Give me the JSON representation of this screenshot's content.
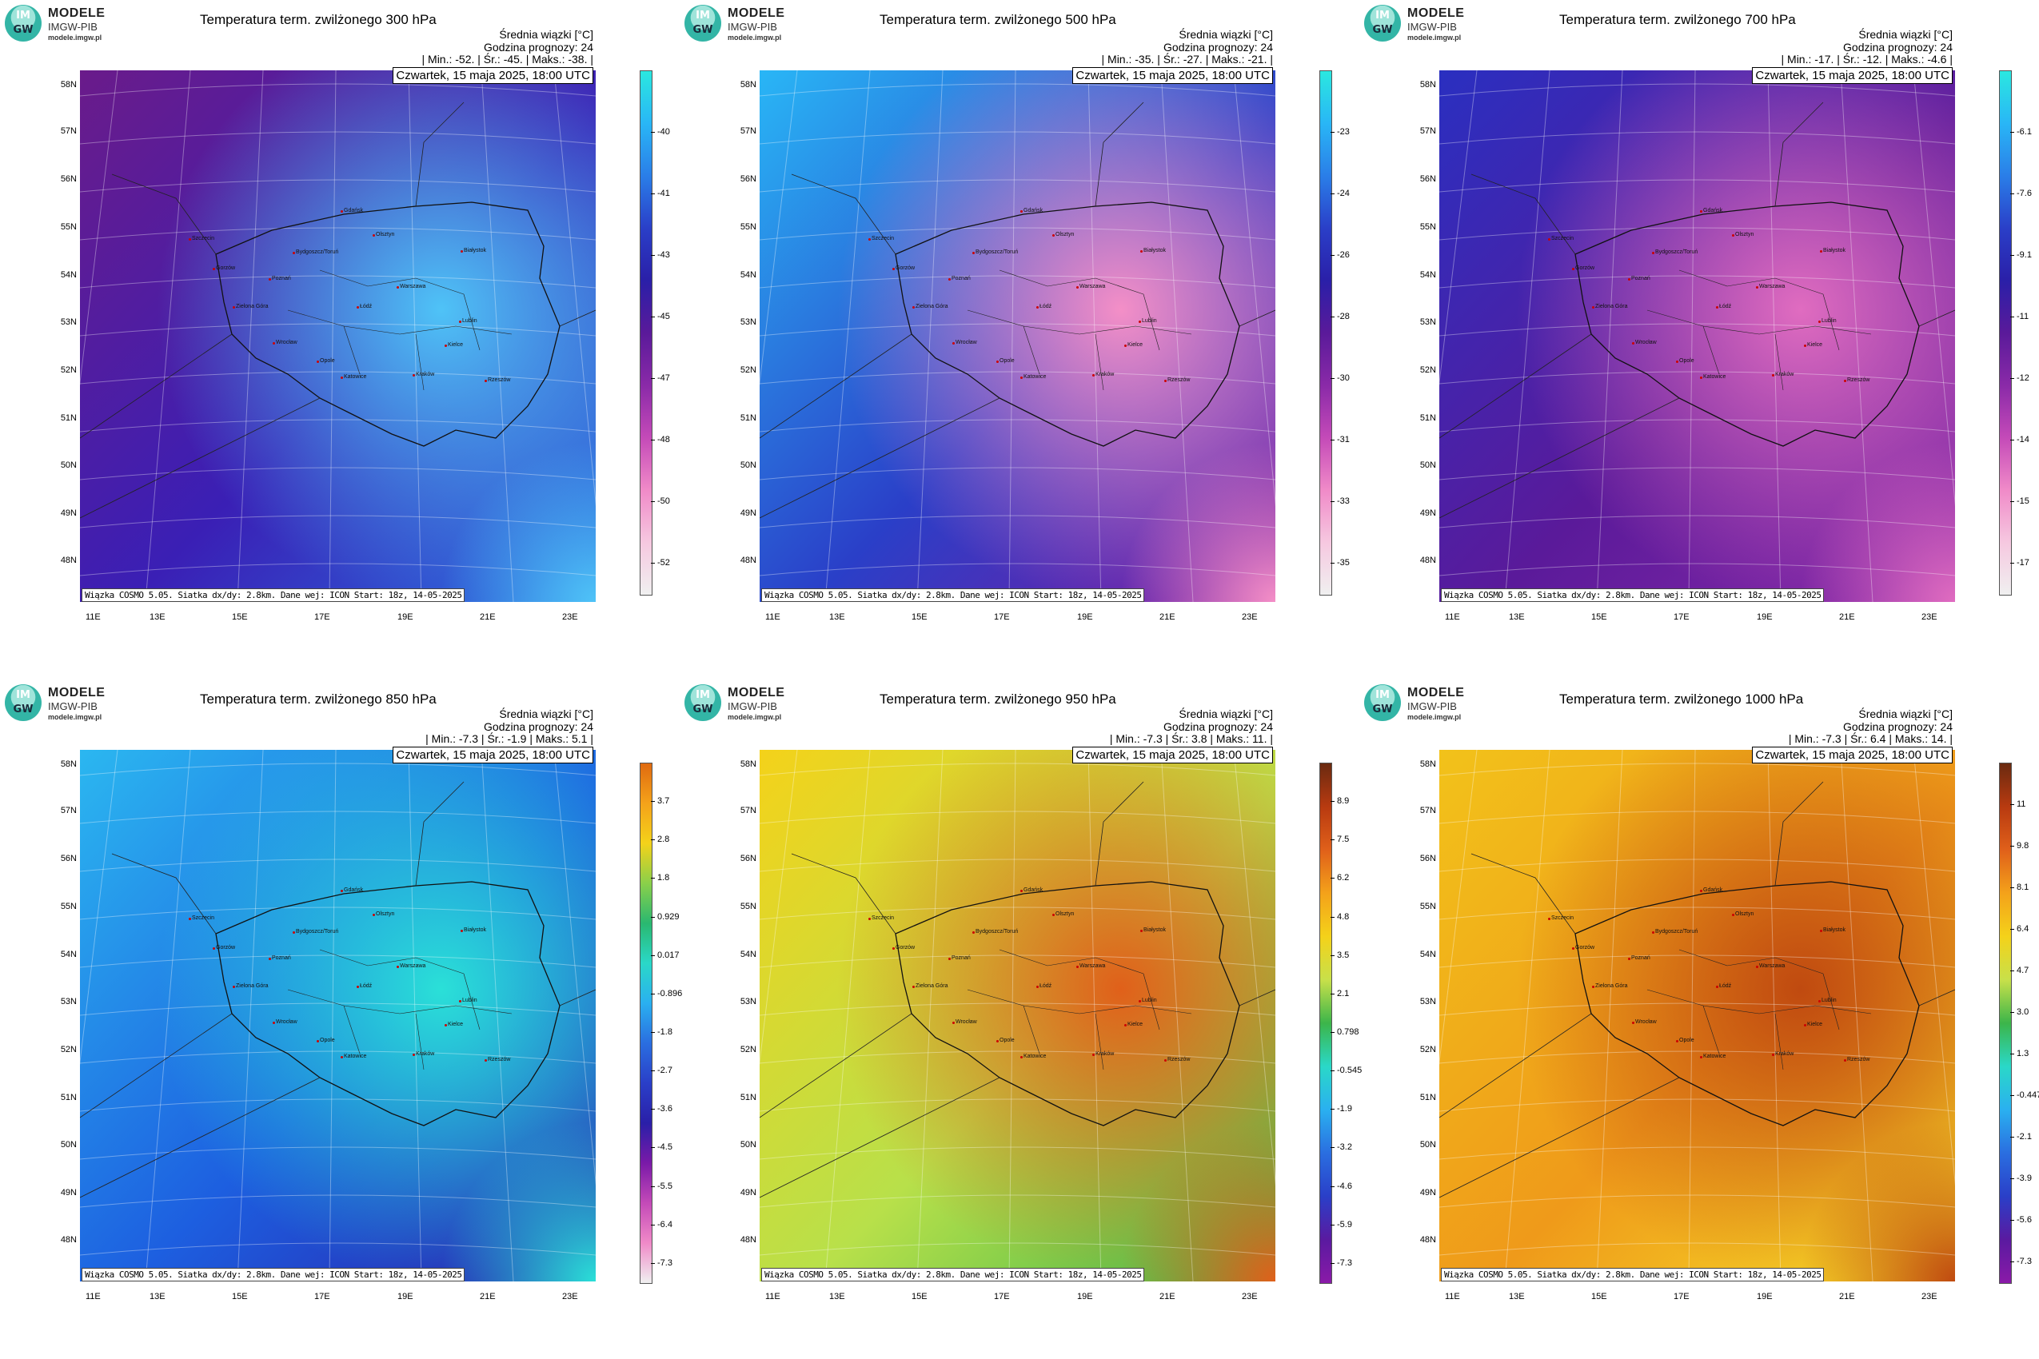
{
  "logo": {
    "line1": "MODELE",
    "line2": "IMGW-PIB",
    "line3": "modele.imgw.pl",
    "badge_top": "IM",
    "badge_bottom": "GW"
  },
  "common": {
    "mean_label": "Średnia wiązki [°C]",
    "forecast_label": "Godzina prognozy: 24",
    "date": "Czwartek, 15 maja 2025, 18:00 UTC",
    "footer": "Wiązka COSMO 5.05. Siatka dx/dy: 2.8km. Dane wej: ICON Start: 18z, 14-05-2025",
    "lat_labels": [
      "58N",
      "57N",
      "56N",
      "55N",
      "54N",
      "53N",
      "52N",
      "51N",
      "50N",
      "49N",
      "48N"
    ],
    "lon_labels": [
      "11E",
      "13E",
      "15E",
      "17E",
      "19E",
      "21E",
      "23E"
    ],
    "cities": [
      "Gdańsk",
      "Olsztyn",
      "Szczecin",
      "Bydgoszcz/Toruń",
      "Białystok",
      "Gorzów",
      "Poznań",
      "Warszawa",
      "Zielona Góra",
      "Łódź",
      "Lublin",
      "Wrocław",
      "Kielce",
      "Opole",
      "Katowice",
      "Kraków",
      "Rzeszów"
    ]
  },
  "panels": [
    {
      "title": "Temperatura term. zwilżonego 300 hPa",
      "stats": "| Min.:    -52. | Śr.:    -45. | Maks.:   -38. |",
      "colorbar": [
        "-40",
        "-41",
        "-43",
        "-45",
        "-47",
        "-48",
        "-50",
        "-52"
      ],
      "palette": "cold",
      "colors": [
        "#6a1b8a",
        "#3a1fb5",
        "#2a6ee0",
        "#4fc3f7"
      ]
    },
    {
      "title": "Temperatura term. zwilżonego 500 hPa",
      "stats": "| Min.:    -35. | Śr.:    -27. | Maks.:   -21. |",
      "colorbar": [
        "-23",
        "-24",
        "-26",
        "-28",
        "-30",
        "-31",
        "-33",
        "-35"
      ],
      "palette": "cold",
      "colors": [
        "#29b6f6",
        "#2a3fc8",
        "#7a1aa0",
        "#f48fc7"
      ]
    },
    {
      "title": "Temperatura term. zwilżonego 700 hPa",
      "stats": "| Min.:    -17. | Śr.:    -12. | Maks.:   -4.6 |",
      "colorbar": [
        "-6.1",
        "-7.6",
        "-9.1",
        "-11",
        "-12",
        "-14",
        "-15",
        "-17"
      ],
      "palette": "cold",
      "colors": [
        "#2a2fc0",
        "#5a1a9a",
        "#8a2aa8",
        "#e06cc0"
      ]
    },
    {
      "title": "Temperatura term. zwilżonego 850 hPa",
      "stats": "| Min.:    -7.3 | Śr.:    -1.9 | Maks.:    5.1 |",
      "colorbar": [
        "3.7",
        "2.8",
        "1.8",
        "0.929",
        "0.017",
        "-0.896",
        "-1.8",
        "-2.7",
        "-3.6",
        "-4.5",
        "-5.5",
        "-6.4",
        "-7.3"
      ],
      "palette": "mixed",
      "colors": [
        "#2bb7f0",
        "#1d5fe0",
        "#2a1fa8",
        "#2ae0d8"
      ]
    },
    {
      "title": "Temperatura term. zwilżonego 950 hPa",
      "stats": "| Min.:    -7.3 | Śr.:     3.8 | Maks.:    11. |",
      "colorbar": [
        "8.9",
        "7.5",
        "6.2",
        "4.8",
        "3.5",
        "2.1",
        "0.798",
        "-0.545",
        "-1.9",
        "-3.2",
        "-4.6",
        "-5.9",
        "-7.3"
      ],
      "palette": "warm",
      "colors": [
        "#f4d21a",
        "#b8e04a",
        "#3cb54a",
        "#e0601a"
      ]
    },
    {
      "title": "Temperatura term. zwilżonego 1000 hPa",
      "stats": "| Min.:    -7.3 | Śr.:     6.4 | Maks.:    14. |",
      "colorbar": [
        "11",
        "9.8",
        "8.1",
        "6.4",
        "4.7",
        "3.0",
        "1.3",
        "-0.447",
        "-2.1",
        "-3.9",
        "-5.6",
        "-7.3"
      ],
      "palette": "warm",
      "colors": [
        "#f2c21a",
        "#ef9a1a",
        "#f6e22a",
        "#c04a10"
      ]
    }
  ]
}
